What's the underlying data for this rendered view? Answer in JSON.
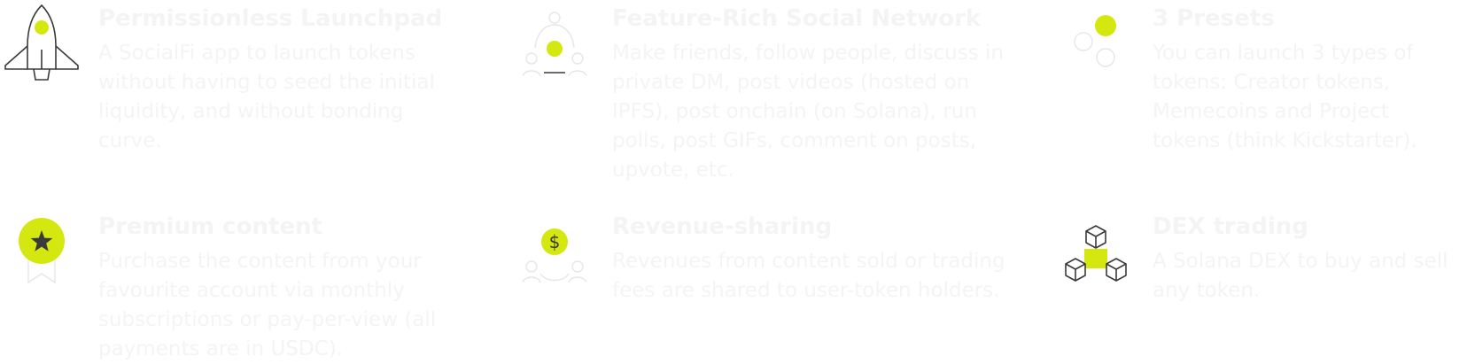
{
  "colors": {
    "background": "#ffffff",
    "text": "#f4f4f4",
    "accent": "#d4e80f",
    "icon_stroke": "#3a3a3a",
    "icon_muted": "#e6e6e6"
  },
  "features": [
    {
      "icon": "rocket-icon",
      "title": "Permissionless Launchpad",
      "description": "A SocialFi app to launch tokens without having to seed the initial liquidity, and without bonding curve."
    },
    {
      "icon": "social-network-icon",
      "title": "Feature-Rich Social Network",
      "description": "Make friends, follow people, discuss in private DM, post videos (hosted on IPFS), post onchain (on Solana), run polls, post GIFs, comment on posts, upvote, etc."
    },
    {
      "icon": "presets-icon",
      "title": "3 Presets",
      "description": "You can launch 3 types of tokens: Creator tokens, Memecoins and Project tokens (think Kickstarter)."
    },
    {
      "icon": "premium-star-icon",
      "title": "Premium content",
      "description": "Purchase the content from your favourite account via monthly subscriptions or pay-per-view (all payments are in USDC)."
    },
    {
      "icon": "revenue-sharing-icon",
      "title": "Revenue-sharing",
      "description": "Revenues from content sold or trading fees are shared to user-token holders."
    },
    {
      "icon": "dex-cubes-icon",
      "title": "DEX trading",
      "description": "A Solana DEX to buy and sell any token."
    }
  ]
}
